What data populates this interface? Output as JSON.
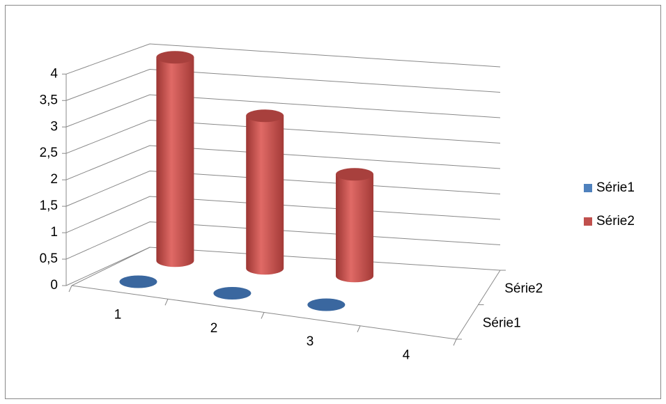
{
  "chart_data": {
    "type": "bar3d-cylinder",
    "categories": [
      "1",
      "2",
      "3",
      "4"
    ],
    "series": [
      {
        "name": "Série1",
        "color": "#4f81bd",
        "values": [
          0,
          0,
          0,
          null
        ]
      },
      {
        "name": "Série2",
        "color": "#c0504d",
        "values": [
          4,
          3,
          2,
          null
        ]
      }
    ],
    "ylim": [
      0,
      4
    ],
    "yticks": [
      0,
      {
        "value": 0.5,
        "label": "0,5"
      },
      1,
      {
        "value": 1.5,
        "label": "1,5"
      },
      2,
      {
        "value": 2.5,
        "label": "2,5"
      },
      3,
      {
        "value": 3.5,
        "label": "3,5"
      },
      4
    ],
    "grid": true,
    "legend": "right"
  }
}
